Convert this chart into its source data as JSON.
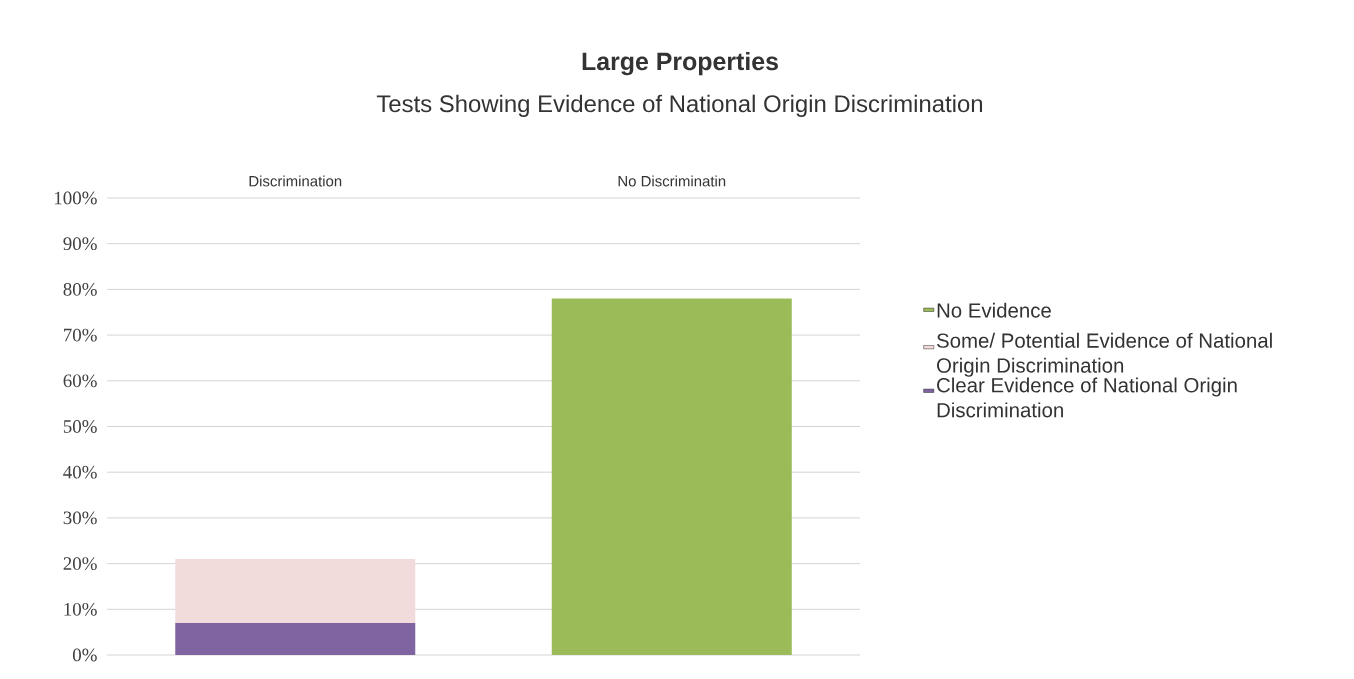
{
  "chart_data": {
    "type": "bar",
    "title": "Large Properties",
    "subtitle": "Tests Showing Evidence of National Origin Discrimination",
    "categories": [
      "Discrimination",
      "No Discriminatin"
    ],
    "stacked": true,
    "series": [
      {
        "name": "Clear Evidence of National Origin Discrimination",
        "color": "#8064a2",
        "values": [
          7,
          null
        ]
      },
      {
        "name": "Some/ Potential Evidence of National Origin Discrimination",
        "color": "#f2dcdb",
        "values": [
          14,
          null
        ]
      },
      {
        "name": "No Evidence",
        "color": "#9bbb59",
        "values": [
          null,
          78
        ]
      }
    ],
    "ylim": [
      0,
      100
    ],
    "yticks": [
      {
        "value": 0,
        "label": "0%"
      },
      {
        "value": 10,
        "label": "10%"
      },
      {
        "value": 20,
        "label": "20%"
      },
      {
        "value": 30,
        "label": "30%"
      },
      {
        "value": 40,
        "label": "40%"
      },
      {
        "value": 50,
        "label": "50%"
      },
      {
        "value": 60,
        "label": "60%"
      },
      {
        "value": 70,
        "label": "70%"
      },
      {
        "value": 80,
        "label": "80%"
      },
      {
        "value": 90,
        "label": "90%"
      },
      {
        "value": 100,
        "label": "100%"
      }
    ],
    "grid": "y",
    "legend": "right"
  }
}
